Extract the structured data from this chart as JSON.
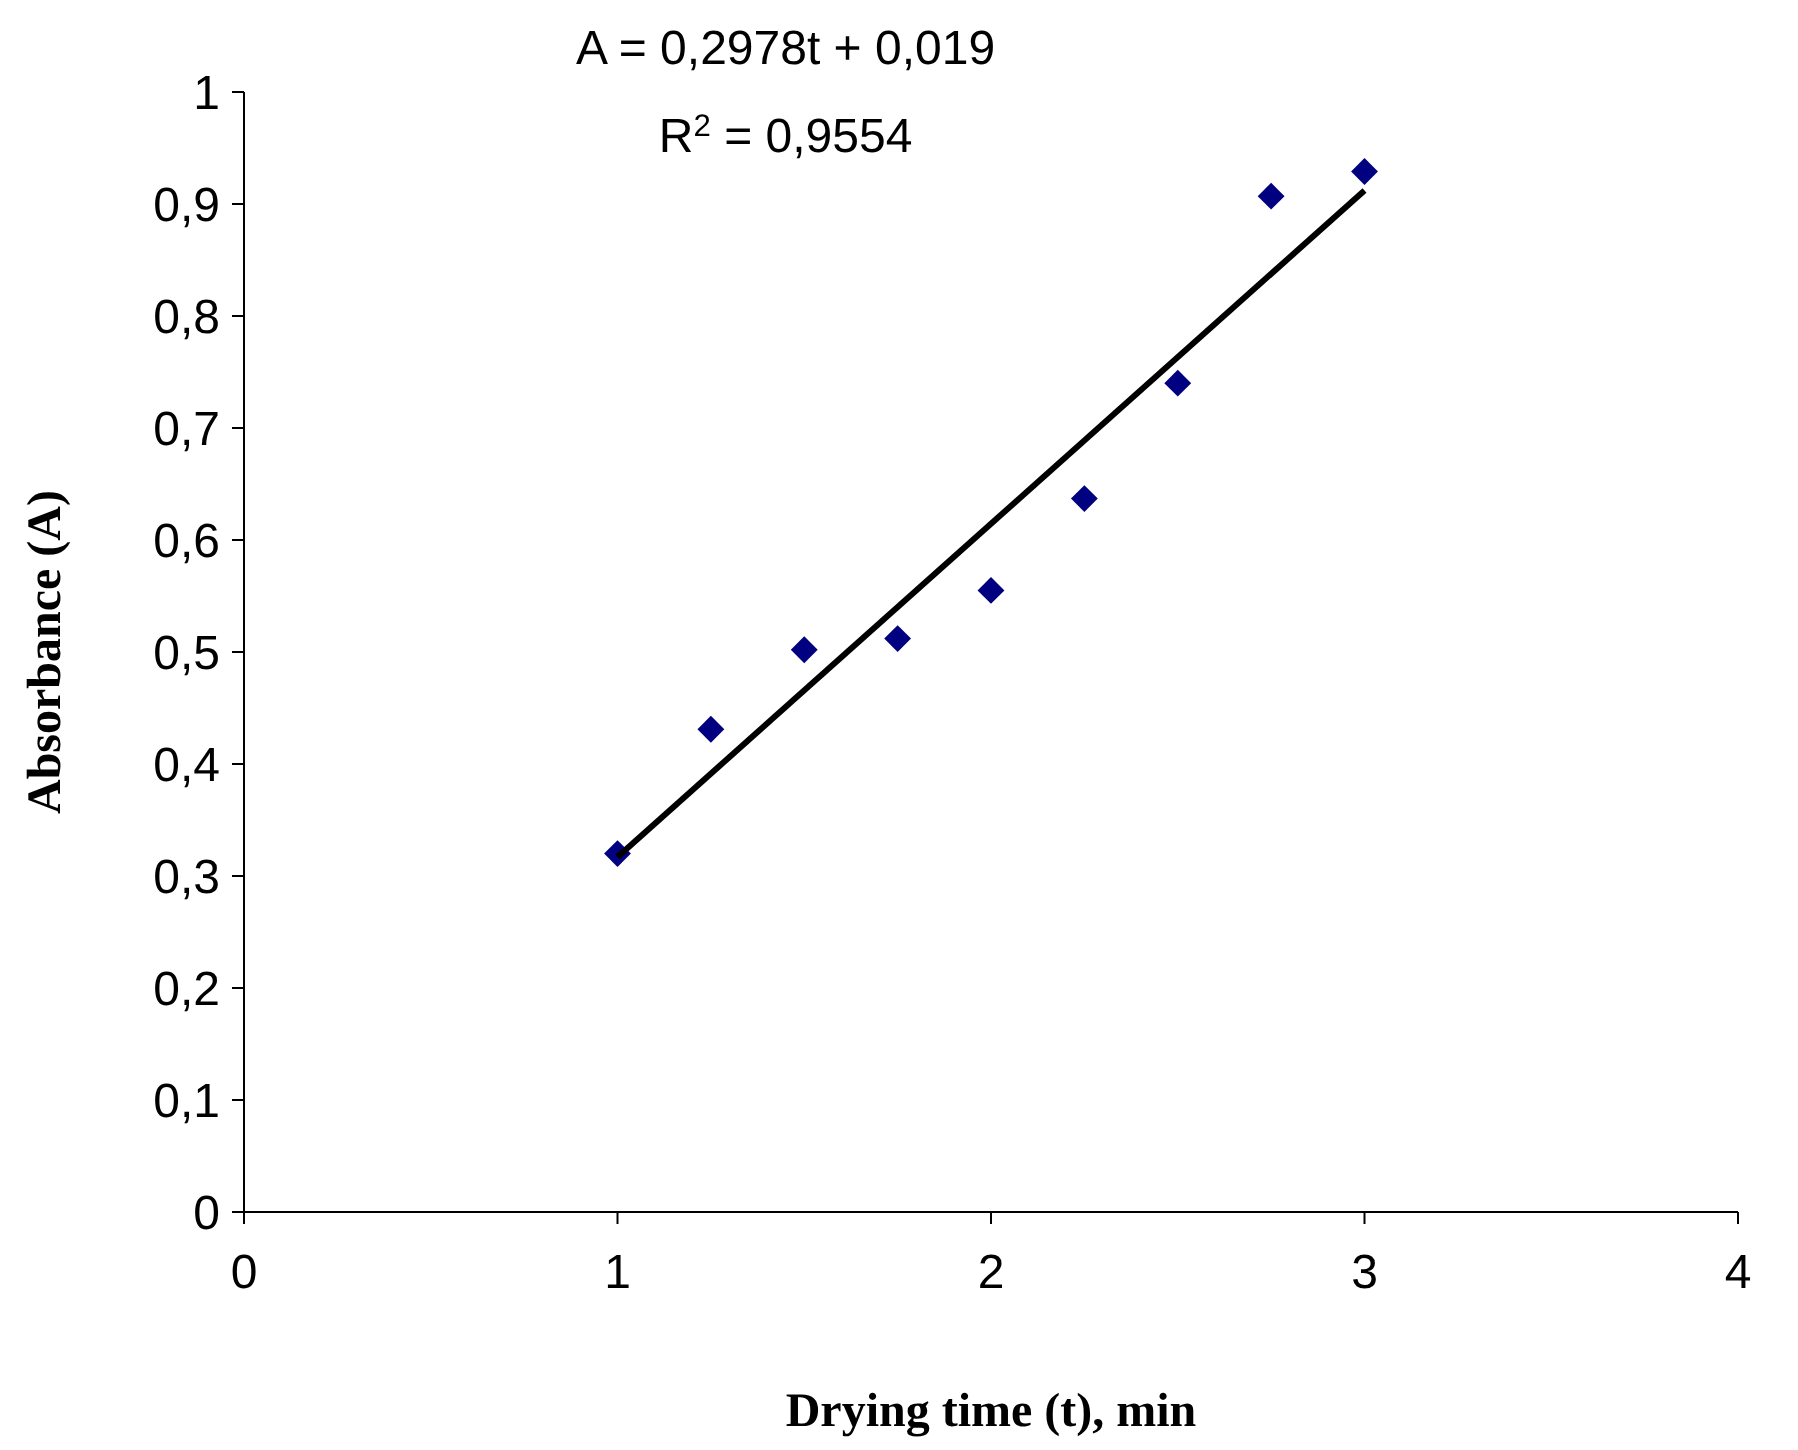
{
  "chart_data": {
    "type": "scatter",
    "xlabel": "Drying time (t), min",
    "ylabel": "Absorbance (A)",
    "xlim": [
      0,
      4
    ],
    "xticks": [
      0,
      1,
      2,
      3,
      4
    ],
    "ylim": [
      0,
      1
    ],
    "yticks": [
      0,
      {
        "value": 0.1,
        "label": "0,1"
      },
      {
        "value": 0.2,
        "label": "0,2"
      },
      {
        "value": 0.3,
        "label": "0,3"
      },
      {
        "value": 0.4,
        "label": "0,4"
      },
      {
        "value": 0.5,
        "label": "0,5"
      },
      {
        "value": 0.6,
        "label": "0,6"
      },
      {
        "value": 0.7,
        "label": "0,7"
      },
      {
        "value": 0.8,
        "label": "0,8"
      },
      {
        "value": 0.9,
        "label": "0,9"
      },
      1
    ],
    "grid": false,
    "series": [
      {
        "color": "#000080",
        "marker": "diamond",
        "x": [
          1,
          1.25,
          1.5,
          1.75,
          2,
          2.25,
          2.5,
          2.75,
          3
        ],
        "values": [
          0.32,
          0.431,
          0.502,
          0.512,
          0.555,
          0.637,
          0.74,
          0.907,
          0.929
        ]
      },
      {
        "type": "line",
        "color": "#000000",
        "line_style": "solid",
        "marker": "none",
        "x": [
          1,
          3
        ],
        "values": [
          0.317,
          0.912
        ]
      }
    ],
    "annotations": [
      "A = 0,2978t + 0,019",
      "R$^{2}$ = 0,9554"
    ]
  }
}
